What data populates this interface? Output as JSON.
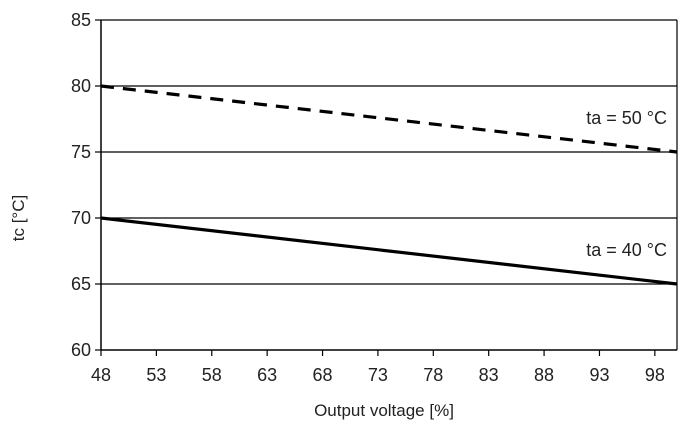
{
  "chart_data": {
    "type": "line",
    "xlabel": "Output voltage [%]",
    "ylabel": "tc [°C]",
    "xlim": [
      48,
      100
    ],
    "ylim": [
      60,
      85
    ],
    "xticks": [
      48,
      53,
      58,
      63,
      68,
      73,
      78,
      83,
      88,
      93,
      98
    ],
    "yticks": [
      60,
      65,
      70,
      75,
      80,
      85
    ],
    "grid": "horizontal",
    "series": [
      {
        "name": "ta = 50 °C",
        "style": "dashed",
        "x": [
          48,
          100
        ],
        "y": [
          80,
          75
        ]
      },
      {
        "name": "ta = 40 °C",
        "style": "solid",
        "x": [
          48,
          100
        ],
        "y": [
          70,
          65
        ]
      }
    ],
    "colors": {
      "line": "#000000",
      "grid": "#000000",
      "text": "#222222"
    }
  }
}
